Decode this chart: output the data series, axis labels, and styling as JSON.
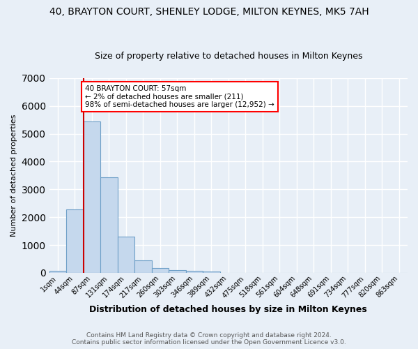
{
  "title": "40, BRAYTON COURT, SHENLEY LODGE, MILTON KEYNES, MK5 7AH",
  "subtitle": "Size of property relative to detached houses in Milton Keynes",
  "xlabel": "Distribution of detached houses by size in Milton Keynes",
  "ylabel": "Number of detached properties",
  "footer_line1": "Contains HM Land Registry data © Crown copyright and database right 2024.",
  "footer_line2": "Contains public sector information licensed under the Open Government Licence v3.0.",
  "bar_labels": [
    "1sqm",
    "44sqm",
    "87sqm",
    "131sqm",
    "174sqm",
    "217sqm",
    "260sqm",
    "303sqm",
    "346sqm",
    "389sqm",
    "432sqm",
    "475sqm",
    "518sqm",
    "561sqm",
    "604sqm",
    "648sqm",
    "691sqm",
    "734sqm",
    "777sqm",
    "820sqm",
    "863sqm"
  ],
  "bar_values": [
    80,
    2280,
    5450,
    3430,
    1310,
    460,
    185,
    95,
    65,
    40,
    0,
    0,
    0,
    0,
    0,
    0,
    0,
    0,
    0,
    0,
    0
  ],
  "bar_color": "#c5d8ed",
  "bar_edge_color": "#6fa0c8",
  "red_line_x": 1.5,
  "annotation_text": "40 BRAYTON COURT: 57sqm\n← 2% of detached houses are smaller (211)\n98% of semi-detached houses are larger (12,952) →",
  "annotation_box_color": "white",
  "annotation_box_edge_color": "red",
  "red_line_color": "#cc0000",
  "ylim": [
    0,
    7000
  ],
  "background_color": "#e8eff7",
  "grid_color": "white",
  "title_fontsize": 10,
  "subtitle_fontsize": 9,
  "ylabel_fontsize": 8,
  "xlabel_fontsize": 9,
  "tick_fontsize": 7,
  "footer_fontsize": 6.5,
  "annotation_fontsize": 7.5
}
